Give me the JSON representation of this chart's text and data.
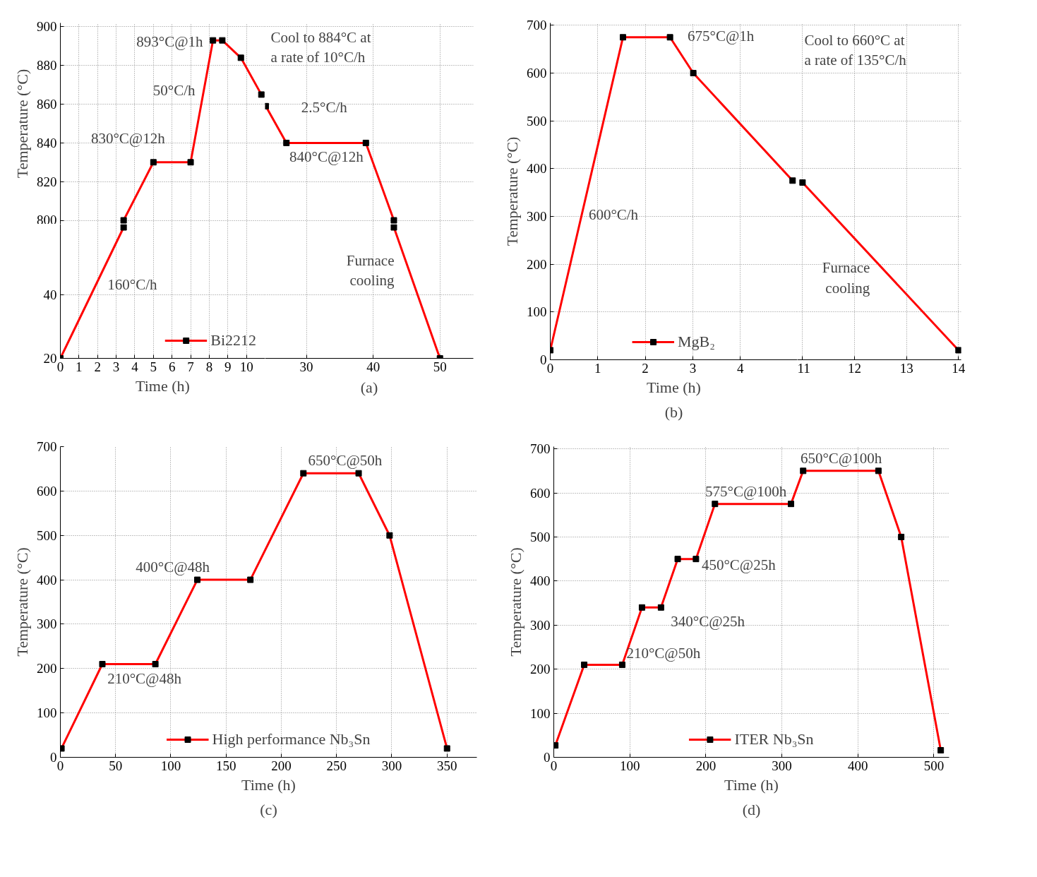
{
  "chart_data": [
    {
      "type": "line",
      "xlim": [
        0,
        11
      ],
      "ylim": [
        798,
        902
      ],
      "xticks": [
        0,
        1,
        2,
        3,
        4,
        5,
        6,
        7,
        8,
        9,
        10
      ],
      "yticks": [
        800,
        820,
        840,
        860,
        880,
        900
      ],
      "tick_labels": "y",
      "grid": true,
      "marker": "square",
      "ylabel": "Temperature (°C)",
      "series": [
        {
          "color": "#ff0000",
          "x": [
            3.4,
            5,
            7,
            8.2,
            8.7,
            9.7,
            10.8
          ],
          "values": [
            800,
            830,
            830,
            893,
            893,
            884,
            865
          ]
        }
      ],
      "annotations": [
        {
          "text": "830°C@12h",
          "x": 6,
          "y": 830
        },
        {
          "text": "50°C/h",
          "x": 7.7,
          "y": 860
        },
        {
          "text": "893°C@1h",
          "x": 8.5,
          "y": 893
        }
      ]
    },
    {
      "type": "line",
      "xlim": [
        23.8,
        55
      ],
      "ylim": [
        798,
        902
      ],
      "xticks": [
        30,
        40,
        50
      ],
      "yticks": [
        800,
        820,
        840,
        860,
        880,
        900
      ],
      "tick_labels": false,
      "grid": true,
      "marker": "square",
      "series": [
        {
          "color": "#ff0000",
          "x": [
            23.9,
            27,
            38.9,
            43.1
          ],
          "values": [
            859,
            840,
            840,
            800
          ]
        }
      ],
      "annotations": [
        "Cool to 884°C at\na rate of 10°C/h",
        {
          "text": "2.5°C/h",
          "x": 25,
          "y": 852
        },
        {
          "text": "840°C@12h",
          "x": 33,
          "y": 840
        }
      ]
    },
    {
      "type": "line",
      "xlim": [
        0,
        11
      ],
      "ylim": [
        20,
        62
      ],
      "xticks": [
        0,
        1,
        2,
        3,
        4,
        5,
        6,
        7,
        8,
        9,
        10
      ],
      "yticks": [
        20,
        40
      ],
      "grid": true,
      "marker": "square",
      "xlabel": "Time (h)",
      "legend": "bottom right",
      "series": [
        {
          "name": "Bi2212",
          "color": "#ff0000",
          "x": [
            0,
            3.4
          ],
          "values": [
            20,
            61
          ]
        }
      ],
      "annotations": [
        {
          "text": "160°C/h",
          "x": 2,
          "y": 44
        }
      ]
    },
    {
      "type": "line",
      "xlim": [
        23.8,
        55
      ],
      "ylim": [
        20,
        62
      ],
      "xticks": [
        30,
        40,
        50
      ],
      "yticks": [
        20,
        40
      ],
      "tick_labels": "x",
      "grid": true,
      "marker": "square",
      "series": [
        {
          "color": "#ff0000",
          "x": [
            43.1,
            50
          ],
          "values": [
            61,
            20
          ]
        }
      ],
      "annotations": [
        {
          "text": "Furnace\ncooling",
          "x": 44,
          "y": 56
        },
        "(a)"
      ]
    },
    {
      "type": "line",
      "xlim": [
        0,
        5.2
      ],
      "ylim": [
        0,
        705
      ],
      "xticks": [
        0,
        1,
        2,
        3,
        4
      ],
      "yticks": [
        0,
        100,
        200,
        300,
        400,
        500,
        600,
        700
      ],
      "grid": true,
      "marker": "square",
      "xlabel": "Time (h)",
      "ylabel": "Temperature (°C)",
      "legend": "bottom",
      "series": [
        {
          "name": "MgB₂",
          "color": "#ff0000",
          "x": [
            0,
            1.53,
            2.52,
            3.01,
            5.1
          ],
          "values": [
            20,
            675,
            675,
            600,
            375
          ]
        }
      ],
      "annotations": [
        {
          "text": "675°C@1h",
          "x": 2,
          "y": 675
        },
        {
          "text": "600°C/h",
          "x": 0.6,
          "y": 277
        },
        "(b)"
      ]
    },
    {
      "type": "line",
      "xlim": [
        10.9,
        14.05
      ],
      "ylim": [
        0,
        705
      ],
      "xticks": [
        11,
        12,
        13,
        14
      ],
      "yticks": [
        0,
        100,
        200,
        300,
        400,
        500,
        600,
        700
      ],
      "tick_labels": "x",
      "grid": true,
      "marker": "square",
      "series": [
        {
          "color": "#ff0000",
          "x": [
            11,
            14
          ],
          "values": [
            371,
            20
          ]
        }
      ],
      "annotations": [
        "Cool to 660°C at\na rate of 135°C/h",
        {
          "text": "Furnace\ncooling",
          "x": 12.5,
          "y": 196
        }
      ]
    },
    {
      "type": "line",
      "xlim": [
        0,
        377
      ],
      "ylim": [
        0,
        700
      ],
      "xticks": [
        0,
        50,
        100,
        150,
        200,
        250,
        300,
        350
      ],
      "yticks": [
        0,
        100,
        200,
        300,
        400,
        500,
        600,
        700
      ],
      "grid": true,
      "marker": "square",
      "xlabel": "Time (h)",
      "ylabel": "Temperature (°C)",
      "legend": "bottom",
      "series": [
        {
          "name": "High performance Nb₃Sn",
          "color": "#ff0000",
          "x": [
            1,
            38,
            86,
            124,
            172,
            220,
            270,
            298,
            350
          ],
          "values": [
            20,
            210,
            210,
            400,
            400,
            640,
            640,
            500,
            20
          ]
        }
      ],
      "annotations": [
        {
          "text": "210°C@48h",
          "x": 62,
          "y": 210
        },
        {
          "text": "400°C@48h",
          "x": 148,
          "y": 400
        },
        {
          "text": "650°C@50h",
          "x": 245,
          "y": 640
        },
        "(c)"
      ]
    },
    {
      "type": "line",
      "xlim": [
        0,
        520
      ],
      "ylim": [
        0,
        705
      ],
      "xticks": [
        0,
        100,
        200,
        300,
        400,
        500
      ],
      "yticks": [
        0,
        100,
        200,
        300,
        400,
        500,
        600,
        700
      ],
      "grid": true,
      "marker": "square",
      "xlabel": "Time (h)",
      "ylabel": "Temperature (°C)",
      "legend": "bottom",
      "series": [
        {
          "name": "ITER Nb₃Sn",
          "color": "#ff0000",
          "x": [
            2,
            40,
            90,
            116,
            141,
            163,
            187,
            212,
            312,
            328,
            427,
            457,
            509
          ],
          "values": [
            27,
            210,
            210,
            340,
            340,
            450,
            450,
            575,
            575,
            650,
            650,
            500,
            16
          ]
        }
      ],
      "annotations": [
        {
          "text": "210°C@50h",
          "x": 90,
          "y": 210
        },
        {
          "text": "340°C@25h",
          "x": 141,
          "y": 340
        },
        {
          "text": "450°C@25h",
          "x": 187,
          "y": 450
        },
        {
          "text": "575°C@100h",
          "x": 262,
          "y": 575
        },
        {
          "text": "650°C@100h",
          "x": 378,
          "y": 650
        },
        "(d)"
      ]
    }
  ]
}
